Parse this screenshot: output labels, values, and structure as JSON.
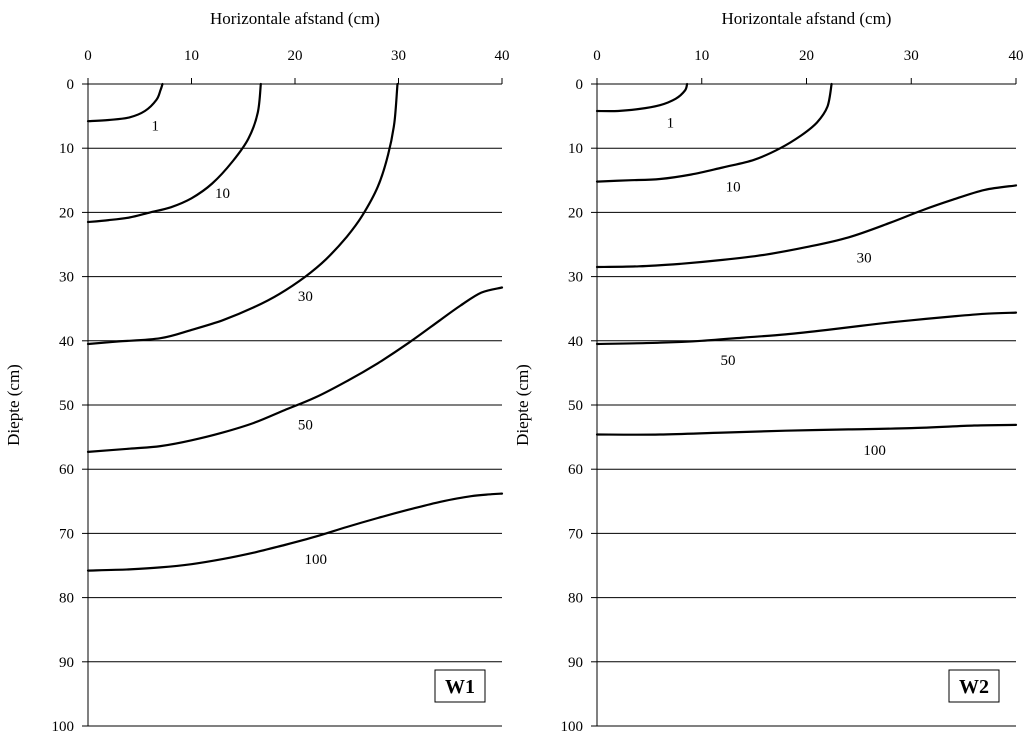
{
  "chart_data": [
    {
      "type": "line",
      "panel_label": "W1",
      "xlabel": "Horizontale afstand (cm)",
      "ylabel": "Diepte (cm)",
      "xlim": [
        0,
        40
      ],
      "ylim": [
        0,
        100
      ],
      "y_inverted": true,
      "x_axis_position": "top",
      "x_ticks": [
        0,
        10,
        20,
        30,
        40
      ],
      "y_ticks": [
        0,
        10,
        20,
        30,
        40,
        50,
        60,
        70,
        80,
        90,
        100
      ],
      "horizontal_grid": true,
      "series": [
        {
          "name": "1",
          "label_at": [
            6.5,
            6.5
          ],
          "points": [
            [
              0,
              5.8
            ],
            [
              2,
              5.6
            ],
            [
              4,
              5.2
            ],
            [
              5.5,
              4.2
            ],
            [
              6.6,
              2.5
            ],
            [
              7.0,
              1.0
            ],
            [
              7.2,
              0
            ]
          ]
        },
        {
          "name": "10",
          "label_at": [
            13,
            17
          ],
          "points": [
            [
              0,
              21.5
            ],
            [
              2,
              21.2
            ],
            [
              4,
              20.8
            ],
            [
              6,
              20.0
            ],
            [
              8,
              19.2
            ],
            [
              10,
              17.8
            ],
            [
              12,
              15.5
            ],
            [
              14,
              12.0
            ],
            [
              15.5,
              8.5
            ],
            [
              16.4,
              4.5
            ],
            [
              16.7,
              0
            ]
          ]
        },
        {
          "name": "30",
          "label_at": [
            21,
            33
          ],
          "points": [
            [
              0,
              40.5
            ],
            [
              3,
              40.1
            ],
            [
              7,
              39.6
            ],
            [
              10,
              38.3
            ],
            [
              13,
              36.8
            ],
            [
              16,
              34.8
            ],
            [
              18.5,
              32.7
            ],
            [
              21,
              30.0
            ],
            [
              23,
              27.3
            ],
            [
              25,
              23.8
            ],
            [
              26.5,
              20.5
            ],
            [
              28,
              16.0
            ],
            [
              29,
              11.0
            ],
            [
              29.6,
              6.0
            ],
            [
              29.9,
              0
            ]
          ]
        },
        {
          "name": "50",
          "label_at": [
            21,
            53
          ],
          "points": [
            [
              0,
              57.3
            ],
            [
              4,
              56.8
            ],
            [
              7,
              56.4
            ],
            [
              10,
              55.5
            ],
            [
              13,
              54.3
            ],
            [
              16,
              52.8
            ],
            [
              19,
              50.8
            ],
            [
              22,
              48.8
            ],
            [
              25,
              46.3
            ],
            [
              28,
              43.5
            ],
            [
              31,
              40.3
            ],
            [
              34,
              36.8
            ],
            [
              36,
              34.5
            ],
            [
              38,
              32.5
            ],
            [
              40,
              31.7
            ]
          ]
        },
        {
          "name": "100",
          "label_at": [
            22,
            74
          ],
          "points": [
            [
              0,
              75.8
            ],
            [
              4,
              75.6
            ],
            [
              7,
              75.3
            ],
            [
              10,
              74.8
            ],
            [
              13,
              74.0
            ],
            [
              16,
              73.0
            ],
            [
              19,
              71.8
            ],
            [
              22,
              70.5
            ],
            [
              25,
              69.0
            ],
            [
              28,
              67.6
            ],
            [
              31,
              66.3
            ],
            [
              34,
              65.1
            ],
            [
              37,
              64.2
            ],
            [
              39,
              63.9
            ],
            [
              40,
              63.8
            ]
          ]
        }
      ]
    },
    {
      "type": "line",
      "panel_label": "W2",
      "xlabel": "Horizontale afstand (cm)",
      "ylabel": "Diepte (cm)",
      "xlim": [
        0,
        40
      ],
      "ylim": [
        0,
        100
      ],
      "y_inverted": true,
      "x_axis_position": "top",
      "x_ticks": [
        0,
        10,
        20,
        30,
        40
      ],
      "y_ticks": [
        0,
        10,
        20,
        30,
        40,
        50,
        60,
        70,
        80,
        90,
        100
      ],
      "horizontal_grid": true,
      "series": [
        {
          "name": "1",
          "label_at": [
            7,
            6
          ],
          "points": [
            [
              0,
              4.2
            ],
            [
              2,
              4.2
            ],
            [
              4,
              3.9
            ],
            [
              6,
              3.3
            ],
            [
              7.5,
              2.3
            ],
            [
              8.4,
              1.0
            ],
            [
              8.6,
              0
            ]
          ]
        },
        {
          "name": "10",
          "label_at": [
            13,
            16
          ],
          "points": [
            [
              0,
              15.2
            ],
            [
              3,
              15.0
            ],
            [
              6,
              14.8
            ],
            [
              9,
              14.1
            ],
            [
              12,
              13.0
            ],
            [
              15,
              11.8
            ],
            [
              17.5,
              10.0
            ],
            [
              19.5,
              8.0
            ],
            [
              21,
              6.0
            ],
            [
              22,
              3.5
            ],
            [
              22.4,
              0
            ]
          ]
        },
        {
          "name": "30",
          "label_at": [
            25.5,
            27
          ],
          "points": [
            [
              0,
              28.5
            ],
            [
              4,
              28.4
            ],
            [
              8,
              28.0
            ],
            [
              12,
              27.4
            ],
            [
              16,
              26.6
            ],
            [
              20,
              25.4
            ],
            [
              24,
              23.9
            ],
            [
              28,
              21.6
            ],
            [
              31,
              19.7
            ],
            [
              34,
              18.0
            ],
            [
              37,
              16.5
            ],
            [
              40,
              15.8
            ]
          ]
        },
        {
          "name": "50",
          "label_at": [
            12.5,
            43
          ],
          "points": [
            [
              0,
              40.5
            ],
            [
              6,
              40.3
            ],
            [
              10,
              40.0
            ],
            [
              14,
              39.5
            ],
            [
              18,
              39.0
            ],
            [
              22,
              38.3
            ],
            [
              26,
              37.5
            ],
            [
              30,
              36.8
            ],
            [
              34,
              36.2
            ],
            [
              37,
              35.8
            ],
            [
              40,
              35.6
            ]
          ]
        },
        {
          "name": "100",
          "label_at": [
            26.5,
            57
          ],
          "points": [
            [
              0,
              54.6
            ],
            [
              6,
              54.6
            ],
            [
              12,
              54.3
            ],
            [
              18,
              54.0
            ],
            [
              24,
              53.8
            ],
            [
              30,
              53.6
            ],
            [
              36,
              53.2
            ],
            [
              40,
              53.1
            ]
          ]
        }
      ]
    }
  ]
}
